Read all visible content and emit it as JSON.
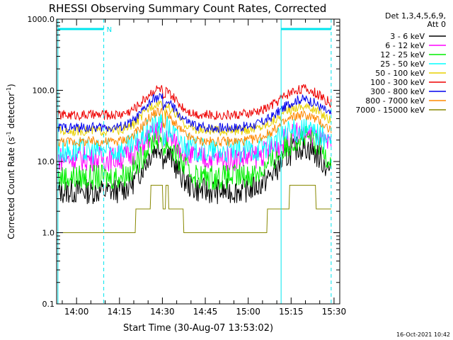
{
  "chart_data": {
    "type": "line",
    "title": "RHESSI Observing Summary Count Rates, Corrected",
    "xlabel": "Start Time (30-Aug-07 13:53:02)",
    "ylabel_main": "Corrected Count Rate (s",
    "ylabel_sup1": "-1",
    "ylabel_mid": " detector",
    "ylabel_sup2": "-1",
    "ylabel_end": ")",
    "yscale": "log",
    "ylim": [
      0.1,
      1000
    ],
    "xlim_minutes": [
      53.03,
      152
    ],
    "y_ticks": [
      {
        "value": 1000,
        "label": "1000.0"
      },
      {
        "value": 100,
        "label": "100.0"
      },
      {
        "value": 10,
        "label": "10.0"
      },
      {
        "value": 1,
        "label": "1.0"
      },
      {
        "value": 0.1,
        "label": "0.1"
      }
    ],
    "x_ticks": [
      {
        "minutes": 60,
        "label": "14:00"
      },
      {
        "minutes": 75,
        "label": "14:15"
      },
      {
        "minutes": 90,
        "label": "14:30"
      },
      {
        "minutes": 105,
        "label": "14:45"
      },
      {
        "minutes": 120,
        "label": "15:00"
      },
      {
        "minutes": 135,
        "label": "15:15"
      },
      {
        "minutes": 150,
        "label": "15:30"
      }
    ],
    "legend_header": [
      "Det 1,3,4,5,6,9,",
      "Att 0"
    ],
    "legend_position": "right",
    "series": [
      {
        "name": "3 - 6 keV",
        "color": "#000000",
        "base": 3.8,
        "peak1": 16,
        "peak2": 16
      },
      {
        "name": "6 - 12 keV",
        "color": "#ff00ff",
        "base": 11,
        "peak1": 26,
        "peak2": 24
      },
      {
        "name": "12 - 25 keV",
        "color": "#00ee00",
        "base": 6,
        "peak1": 22,
        "peak2": 22
      },
      {
        "name": "25 - 50 keV",
        "color": "#00ffff",
        "base": 14,
        "peak1": 33,
        "peak2": 28
      },
      {
        "name": "50 - 100 keV",
        "color": "#e8d000",
        "base": 27,
        "peak1": 68,
        "peak2": 60
      },
      {
        "name": "100 - 300 keV",
        "color": "#ee0000",
        "base": 45,
        "peak1": 105,
        "peak2": 105
      },
      {
        "name": "300 - 800 keV",
        "color": "#0000ee",
        "base": 30,
        "peak1": 80,
        "peak2": 75
      },
      {
        "name": "800 - 7000 keV",
        "color": "#ff8800",
        "base": 19,
        "peak1": 50,
        "peak2": 45
      },
      {
        "name": "7000 - 15000 keV",
        "color": "#888800",
        "base": 1,
        "peak1": 4,
        "peak2": 4
      }
    ],
    "annotations": {
      "saa_bar_label": "N",
      "night_intervals_minutes": [
        [
          53.5,
          69.5
        ],
        [
          131.5,
          149.0
        ]
      ],
      "cyan_color": "#00e5ee"
    },
    "footer_date": "16-Oct-2021 10:42"
  }
}
